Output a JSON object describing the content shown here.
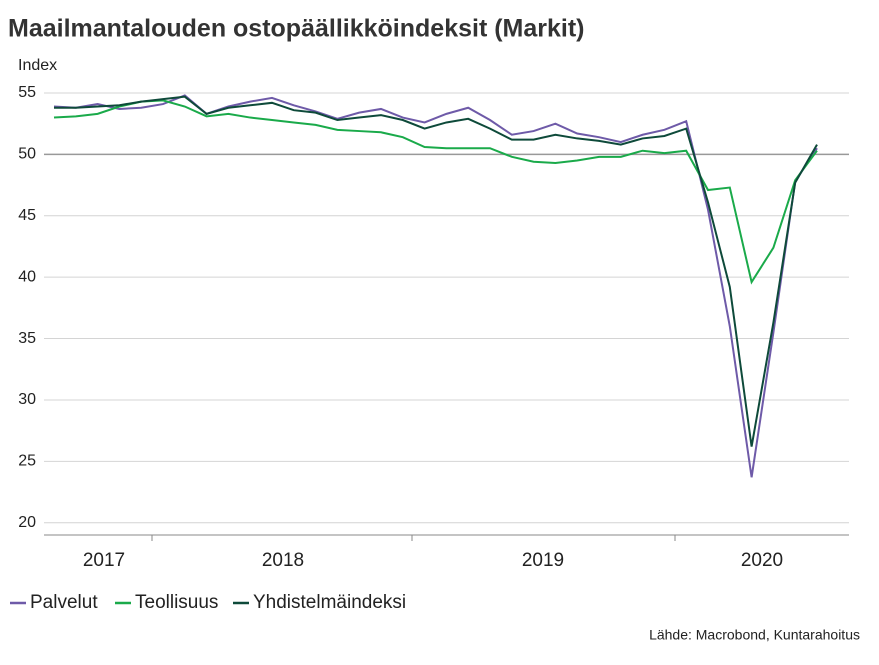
{
  "chart_data": {
    "type": "line",
    "title": "Maailmantalouden ostopäällikköindeksit (Markit)",
    "y_label": "Index",
    "source": "Lähde: Macrobond, Kuntarahoitus",
    "x_labels": [
      "2017",
      "2018",
      "2019",
      "2020"
    ],
    "ylim": [
      19,
      55
    ],
    "yticks": [
      20,
      25,
      30,
      35,
      40,
      45,
      50,
      55
    ],
    "grid": true,
    "series": [
      {
        "name": "Palvelut",
        "color": "#6e5aa8",
        "values": [
          53.9,
          53.8,
          54.1,
          53.7,
          53.8,
          54.1,
          54.8,
          53.3,
          53.9,
          54.3,
          54.6,
          54.0,
          53.5,
          52.9,
          53.4,
          53.7,
          53.0,
          52.6,
          53.3,
          53.8,
          52.8,
          51.6,
          51.9,
          52.5,
          51.7,
          51.4,
          51.0,
          51.6,
          52.0,
          52.7,
          45.5,
          36.0,
          23.7,
          35.5,
          47.8,
          50.5
        ]
      },
      {
        "name": "Teollisuus",
        "color": "#1aaa4a",
        "values": [
          53.0,
          53.1,
          53.3,
          53.9,
          54.3,
          54.4,
          53.9,
          53.1,
          53.3,
          53.0,
          52.8,
          52.6,
          52.4,
          52.0,
          51.9,
          51.8,
          51.4,
          50.6,
          50.5,
          50.5,
          50.5,
          49.8,
          49.4,
          49.3,
          49.5,
          49.8,
          49.8,
          50.3,
          50.1,
          50.3,
          47.1,
          47.3,
          39.6,
          42.4,
          47.9,
          50.3
        ]
      },
      {
        "name": "Yhdistelmäindeksi",
        "color": "#0e4a3a",
        "values": [
          53.8,
          53.8,
          53.9,
          54.0,
          54.3,
          54.5,
          54.7,
          53.3,
          53.8,
          54.0,
          54.2,
          53.6,
          53.4,
          52.8,
          53.0,
          53.2,
          52.8,
          52.1,
          52.6,
          52.9,
          52.1,
          51.2,
          51.2,
          51.6,
          51.3,
          51.1,
          50.8,
          51.3,
          51.5,
          52.1,
          46.1,
          39.2,
          26.2,
          36.3,
          47.7,
          50.8
        ]
      }
    ]
  }
}
